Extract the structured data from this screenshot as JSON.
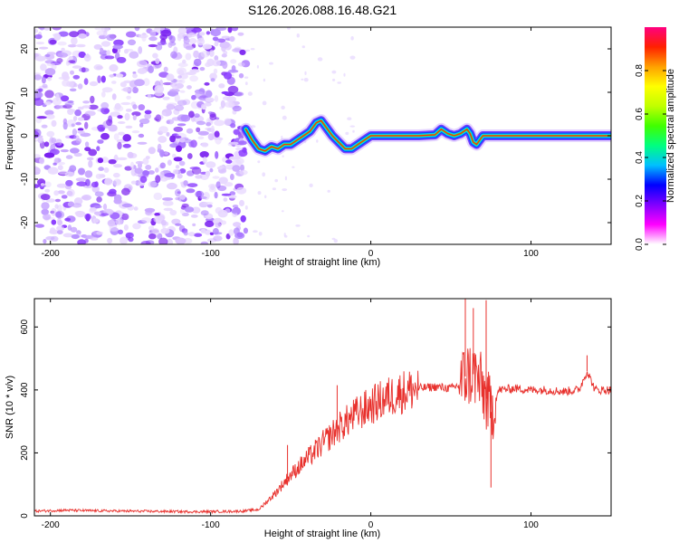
{
  "title": "S126.2026.088.16.48.G21",
  "chart_data": [
    {
      "type": "heatmap",
      "xlabel": "Height of straight line (km)",
      "ylabel": "Frequency (Hz)",
      "xlim": [
        -210,
        150
      ],
      "ylim": [
        -25,
        25
      ],
      "xticks": [
        -200,
        -100,
        0,
        100
      ],
      "yticks": [
        -20,
        -10,
        0,
        10,
        20
      ],
      "grid": false,
      "noise_region_x": [
        -210,
        -78
      ],
      "track": {
        "x": [
          -78,
          -74,
          -70,
          -66,
          -62,
          -58,
          -54,
          -50,
          -46,
          -42,
          -38,
          -34,
          -31,
          -28,
          -24,
          -20,
          -16,
          -12,
          -8,
          -4,
          0,
          10,
          20,
          30,
          40,
          44,
          48,
          52,
          56,
          60,
          62,
          64,
          66,
          68,
          70,
          80,
          90,
          100,
          110,
          120,
          130,
          140,
          150
        ],
        "freq": [
          1.5,
          -1,
          -3,
          -3.5,
          -2.5,
          -3,
          -2,
          -2,
          -1,
          0,
          1,
          3,
          3.5,
          2,
          0,
          -1.5,
          -3,
          -3,
          -2,
          -1,
          0,
          0,
          0,
          0,
          0.2,
          1.5,
          0.5,
          0,
          0.5,
          1.5,
          0.5,
          -1.5,
          -2,
          -1,
          0,
          0,
          0,
          0,
          0,
          0,
          0,
          0,
          0
        ]
      },
      "colorbar": {
        "label": "Normalized spectral amplitude",
        "range": [
          0,
          1
        ],
        "ticks": [
          "0.0",
          "0.2",
          "0.4",
          "0.6",
          "0.8"
        ],
        "colors": [
          "#ffffff",
          "#ff00ff",
          "#8000ff",
          "#0000ff",
          "#00c0ff",
          "#00ff80",
          "#40ff00",
          "#c0ff00",
          "#ffff00",
          "#ffa000",
          "#ff2000",
          "#ff0080"
        ]
      }
    },
    {
      "type": "line",
      "xlabel": "Height of straight line (km)",
      "ylabel": "SNR (10 * v/v)",
      "xlim": [
        -210,
        150
      ],
      "ylim": [
        0,
        690
      ],
      "xticks": [
        -200,
        -100,
        0,
        100
      ],
      "yticks": [
        0,
        200,
        400,
        600
      ],
      "grid": false,
      "series": [
        {
          "name": "SNR",
          "color": "#e8302c",
          "x": [
            -210,
            -190,
            -170,
            -150,
            -130,
            -110,
            -90,
            -80,
            -70,
            -60,
            -50,
            -40,
            -30,
            -20,
            -10,
            0,
            10,
            20,
            30,
            40,
            50,
            55,
            60,
            65,
            70,
            75,
            80,
            90,
            100,
            110,
            120,
            130,
            135,
            140,
            150
          ],
          "values": [
            15,
            18,
            16,
            15,
            14,
            13,
            14,
            15,
            20,
            70,
            130,
            180,
            230,
            280,
            320,
            350,
            375,
            395,
            405,
            410,
            405,
            415,
            450,
            450,
            400,
            330,
            400,
            405,
            400,
            400,
            395,
            400,
            460,
            400,
            400
          ]
        }
      ],
      "spikes": [
        {
          "x": -52,
          "value": 225
        },
        {
          "x": -21,
          "value": 415
        },
        {
          "x": 59,
          "value": 690
        },
        {
          "x": 64,
          "value": 660
        },
        {
          "x": 72,
          "value": 685
        },
        {
          "x": 75,
          "value": 90
        },
        {
          "x": 135,
          "value": 510
        }
      ]
    }
  ]
}
